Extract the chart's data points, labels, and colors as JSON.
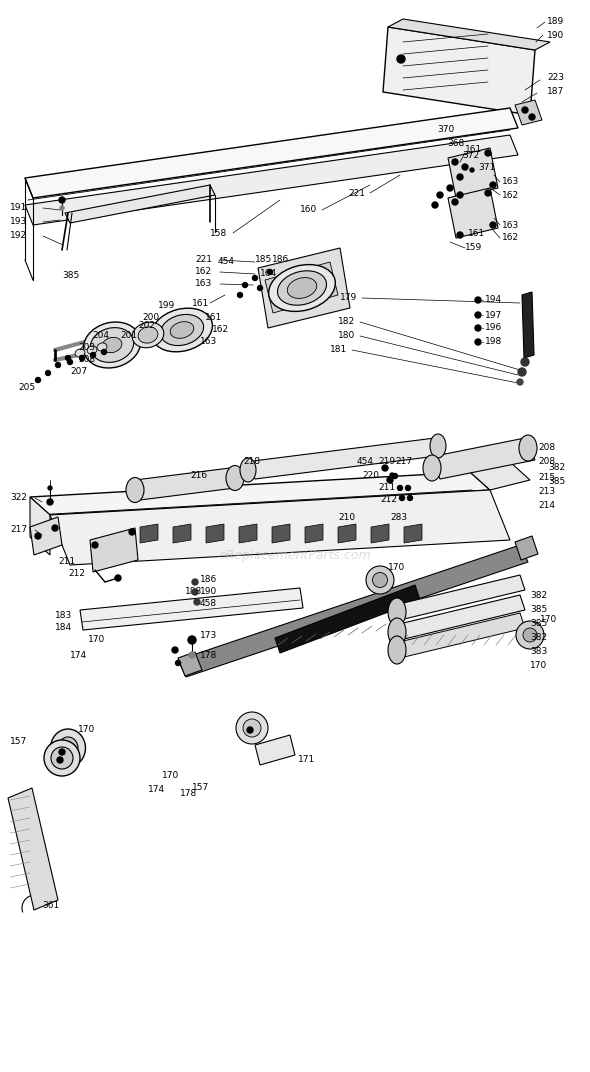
{
  "bg_color": "#ffffff",
  "watermark": "eReplacementParts.com",
  "watermark_color": "#bbbbbb",
  "watermark_fontsize": 9,
  "fig_width": 5.9,
  "fig_height": 10.72,
  "dpi": 100
}
